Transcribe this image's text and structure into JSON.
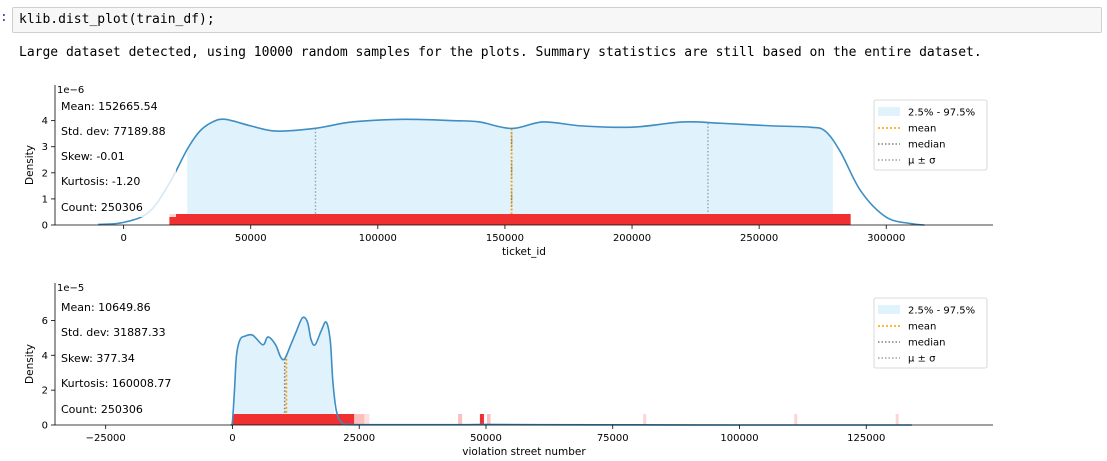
{
  "cell": {
    "prompt": ":",
    "code": "klib.dist_plot(train_df);"
  },
  "output": {
    "message": "Large dataset detected, using 10000 random samples for the plots. Summary statistics are still based on the entire dataset."
  },
  "colors": {
    "kde_line": "#3e8ec4",
    "fill": "#e0f3fc",
    "rug": "#f03030",
    "mean": "#ff9f00",
    "median": "#808080",
    "sigma": "#a0a0a0"
  },
  "chart_data": [
    {
      "type": "area",
      "xlabel": "ticket_id",
      "ylabel": "Density",
      "y_scale_label": "1e−6",
      "xlim": [
        -27000,
        342000
      ],
      "ylim": [
        0,
        4.6
      ],
      "xticks": [
        0,
        50000,
        100000,
        150000,
        200000,
        250000,
        300000
      ],
      "xtick_labels": [
        "0",
        "50000",
        "100000",
        "150000",
        "200000",
        "250000",
        "300000"
      ],
      "yticks": [
        0,
        1,
        2,
        3,
        4
      ],
      "ytick_labels": [
        "0",
        "1",
        "2",
        "3",
        "4"
      ],
      "stats": [
        "Mean: 152665.54",
        "Std. dev: 77189.88",
        "Skew: -0.01",
        "Kurtosis: -1.20",
        "Count: 250306"
      ],
      "legend": [
        "2.5% - 97.5%",
        "mean",
        "median",
        "μ ± σ"
      ],
      "legend_position": "top-right",
      "mean": 152665,
      "median": 152600,
      "sigma_low": 75476,
      "sigma_high": 229855,
      "quantile_range": [
        25000,
        279000
      ],
      "kde": {
        "x": [
          -10000,
          0,
          10000,
          18000,
          25000,
          30000,
          35000,
          40000,
          50000,
          60000,
          75000,
          90000,
          110000,
          130000,
          140000,
          152600,
          165000,
          180000,
          200000,
          220000,
          235000,
          255000,
          270000,
          276000,
          282000,
          290000,
          300000,
          310000,
          315000
        ],
        "y": [
          0.02,
          0.1,
          0.5,
          1.6,
          2.9,
          3.6,
          3.95,
          4.05,
          3.8,
          3.6,
          3.7,
          3.95,
          4.05,
          4.0,
          3.95,
          3.7,
          3.95,
          3.8,
          3.75,
          3.95,
          3.9,
          3.8,
          3.75,
          3.6,
          2.8,
          1.3,
          0.3,
          0.05,
          0.0
        ]
      },
      "rug": [
        {
          "start": 18000,
          "end": 286000,
          "opacity": 1
        }
      ]
    },
    {
      "type": "area",
      "xlabel": "violation street number",
      "ylabel": "Density",
      "y_scale_label": "1e−5",
      "xlim": [
        -35000,
        150000
      ],
      "ylim": [
        0,
        7
      ],
      "xticks": [
        -25000,
        0,
        25000,
        50000,
        75000,
        100000,
        125000
      ],
      "xtick_labels": [
        "−25000",
        "0",
        "25000",
        "50000",
        "75000",
        "100000",
        "125000"
      ],
      "yticks": [
        0,
        2,
        4,
        6
      ],
      "ytick_labels": [
        "0",
        "2",
        "4",
        "6"
      ],
      "stats": [
        "Mean: 10649.86",
        "Std. dev: 31887.33",
        "Skew: 377.34",
        "Kurtosis: 160008.77",
        "Count: 250306"
      ],
      "legend": [
        "2.5% - 97.5%",
        "mean",
        "median",
        "μ ± σ"
      ],
      "legend_position": "top-right",
      "mean": 10650,
      "median": 10300,
      "quantile_range": [
        400,
        20000
      ],
      "kde": {
        "x": [
          -300,
          0,
          400,
          800,
          1500,
          2500,
          4000,
          6000,
          7000,
          8500,
          9500,
          10300,
          11500,
          12500,
          13800,
          14800,
          15500,
          16300,
          17500,
          18500,
          19300,
          19800,
          20500,
          21500,
          23000,
          30000,
          45000,
          50000,
          60000,
          80000,
          100000,
          134000
        ],
        "y": [
          0.0,
          0.2,
          2.0,
          4.0,
          4.9,
          5.1,
          5.15,
          4.6,
          5.05,
          4.6,
          3.9,
          3.8,
          4.6,
          5.3,
          6.15,
          5.9,
          4.9,
          4.6,
          5.4,
          5.9,
          4.8,
          2.5,
          0.8,
          0.15,
          0.03,
          0.02,
          0.02,
          0.03,
          0.02,
          0.01,
          0.0,
          0.0
        ]
      },
      "rug": [
        {
          "start": 0,
          "end": 24000,
          "opacity": 1
        },
        {
          "start": 24000,
          "end": 26000,
          "opacity": 0.3
        },
        {
          "start": 26000,
          "end": 27000,
          "opacity": 0.15
        },
        {
          "start": 44500,
          "end": 45300,
          "opacity": 0.3
        },
        {
          "start": 48800,
          "end": 49600,
          "opacity": 1
        },
        {
          "start": 50200,
          "end": 50900,
          "opacity": 0.3
        },
        {
          "start": 81000,
          "end": 81600,
          "opacity": 0.2
        },
        {
          "start": 110800,
          "end": 111400,
          "opacity": 0.2
        },
        {
          "start": 130800,
          "end": 131400,
          "opacity": 0.2
        }
      ]
    }
  ]
}
